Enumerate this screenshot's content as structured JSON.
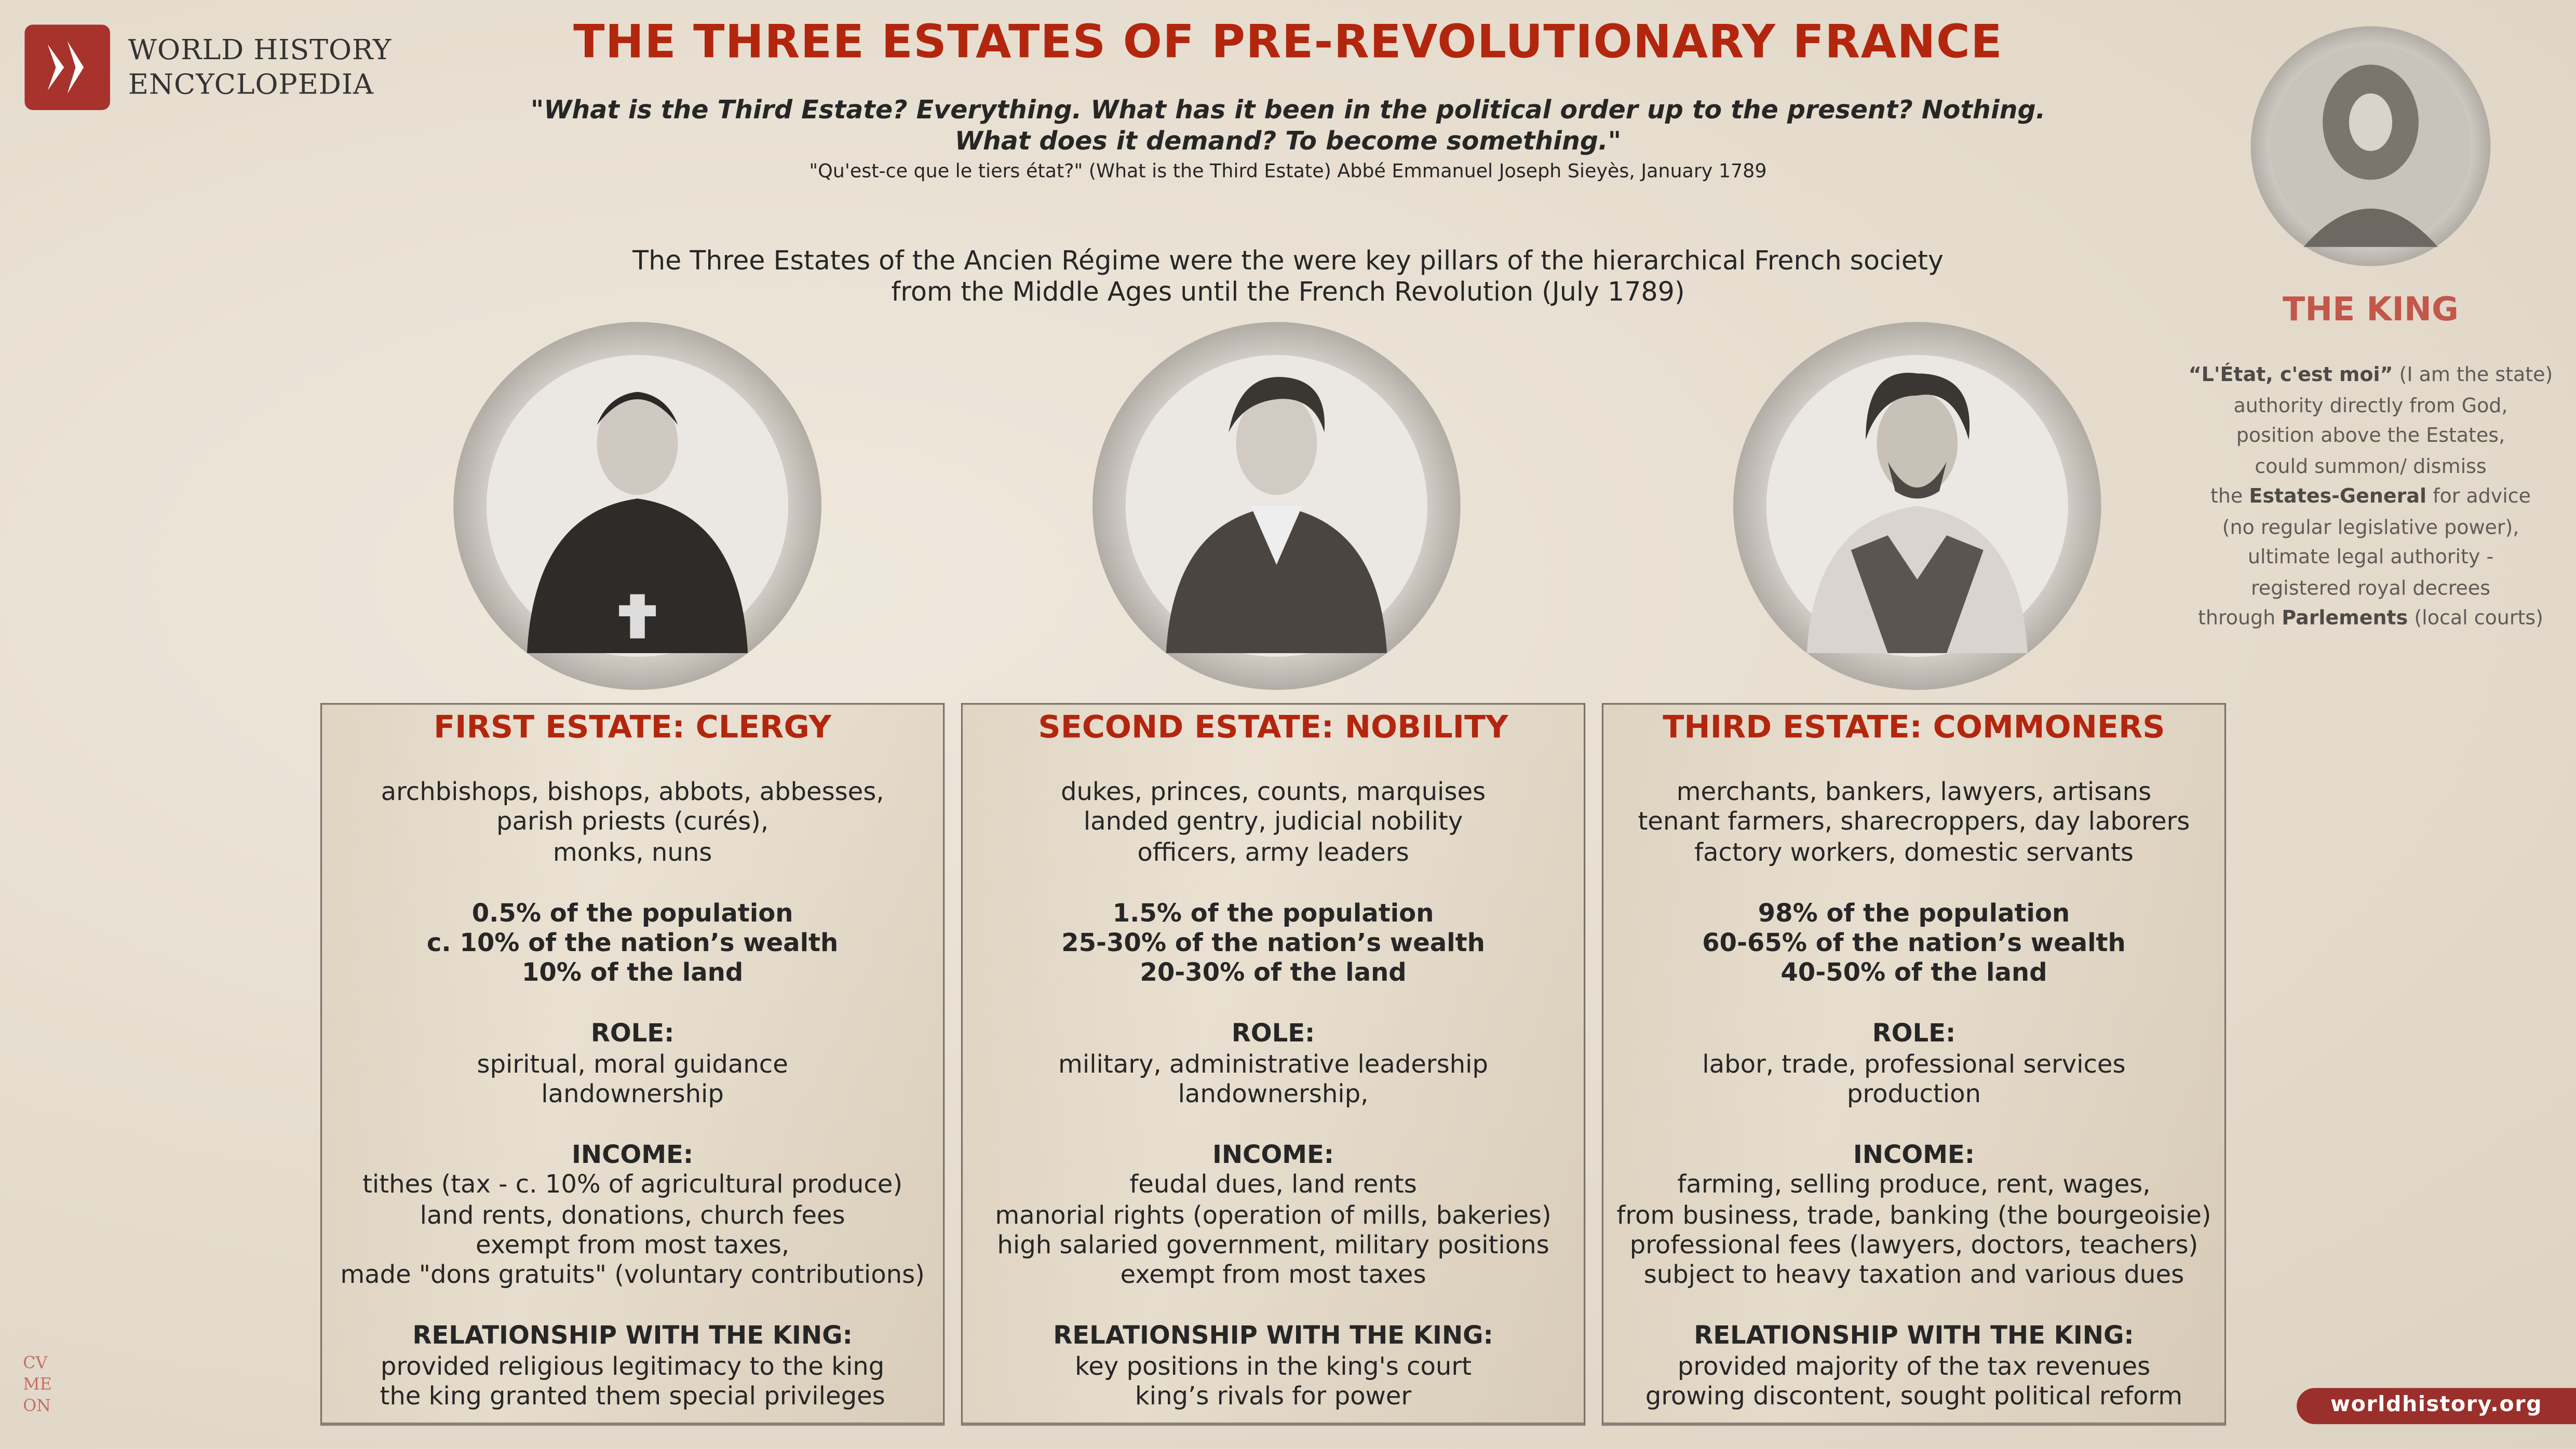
{
  "brand": {
    "name_line1": "WORLD HISTORY",
    "name_line2": "ENCYCLOPEDIA",
    "accent": "#b3260e",
    "badge_color": "#9b2f2b"
  },
  "title": "THE THREE ESTATES OF PRE-REVOLUTIONARY FRANCE",
  "quote": {
    "line1": "\"What is the Third Estate? Everything. What has it been in the political order up to the present? Nothing.",
    "line2": "What does it demand? To become something.\"",
    "attribution": "\"Qu'est-ce que le tiers état?\" (What is the Third Estate) Abbé Emmanuel Joseph Sieyès, January 1789"
  },
  "intro": {
    "line1": "The Three Estates of the Ancien Régime were the were key pillars of the hierarchical French society",
    "line2": "from the Middle Ages until the French Revolution (July 1789)"
  },
  "king": {
    "title": "THE KING",
    "quote_bold": "“L'État, c'est moi”",
    "quote_rest": " (I am the state)",
    "line2": "authority directly from God,",
    "line3": "position above the Estates,",
    "line4": "could summon/ dismiss",
    "line5_pre": "the ",
    "line5_bold": "Estates-General",
    "line5_post": " for advice",
    "line6": "(no regular legislative power),",
    "line7": "ultimate legal authority -",
    "line8": "registered royal decrees",
    "line9_pre": "through ",
    "line9_bold": "Parlements",
    "line9_post": " (local courts)"
  },
  "estates": [
    {
      "heading": "FIRST ESTATE: CLERGY",
      "members": [
        "archbishops, bishops, abbots, abbesses,",
        "parish priests (curés),",
        "monks, nuns"
      ],
      "stats": [
        "0.5% of the population",
        "c. 10% of the nation’s wealth",
        "10% of the land"
      ],
      "role_label": "ROLE:",
      "role": [
        "spiritual, moral guidance",
        "landownership"
      ],
      "income_label": "INCOME:",
      "income": [
        "tithes (tax - c. 10% of agricultural produce)",
        "land rents, donations, church fees",
        "exempt from most taxes,",
        "made \"dons gratuits\" (voluntary contributions)"
      ],
      "rel_label": "RELATIONSHIP WITH THE KING:",
      "rel": [
        "provided religious legitimacy to the king",
        "the king granted them special privileges"
      ]
    },
    {
      "heading": "SECOND ESTATE: NOBILITY",
      "members": [
        "dukes, princes, counts, marquises",
        "landed gentry, judicial nobility",
        "officers, army leaders"
      ],
      "stats": [
        "1.5% of the population",
        "25-30% of the nation’s wealth",
        "20-30% of the land"
      ],
      "role_label": "ROLE:",
      "role": [
        "military, administrative leadership",
        "landownership,"
      ],
      "income_label": "INCOME:",
      "income": [
        "feudal dues, land rents",
        "manorial rights (operation of mills, bakeries)",
        "high salaried government, military positions",
        "exempt from most taxes"
      ],
      "rel_label": "RELATIONSHIP WITH THE KING:",
      "rel": [
        "key positions in the king's court",
        "king’s rivals for power"
      ]
    },
    {
      "heading": "THIRD ESTATE: COMMONERS",
      "members": [
        "merchants, bankers, lawyers, artisans",
        "tenant farmers, sharecroppers, day laborers",
        "factory workers, domestic servants"
      ],
      "stats": [
        "98% of the population",
        "60-65% of the nation’s wealth",
        "40-50% of the land"
      ],
      "role_label": "ROLE:",
      "role": [
        "labor, trade, professional services",
        "production"
      ],
      "income_label": "INCOME:",
      "income": [
        "farming, selling produce, rent, wages,",
        "from business, trade, banking (the bourgeoisie)",
        "professional fees (lawyers, doctors, teachers)",
        "subject to heavy taxation and various dues"
      ],
      "rel_label": "RELATIONSHIP WITH THE KING:",
      "rel": [
        "provided majority of the tax revenues",
        "growing discontent, sought political reform"
      ]
    }
  ],
  "corner_mark": {
    "l1": "CV",
    "l2": "ME",
    "l3": "ON"
  },
  "footer": {
    "url": "worldhistory.org"
  }
}
